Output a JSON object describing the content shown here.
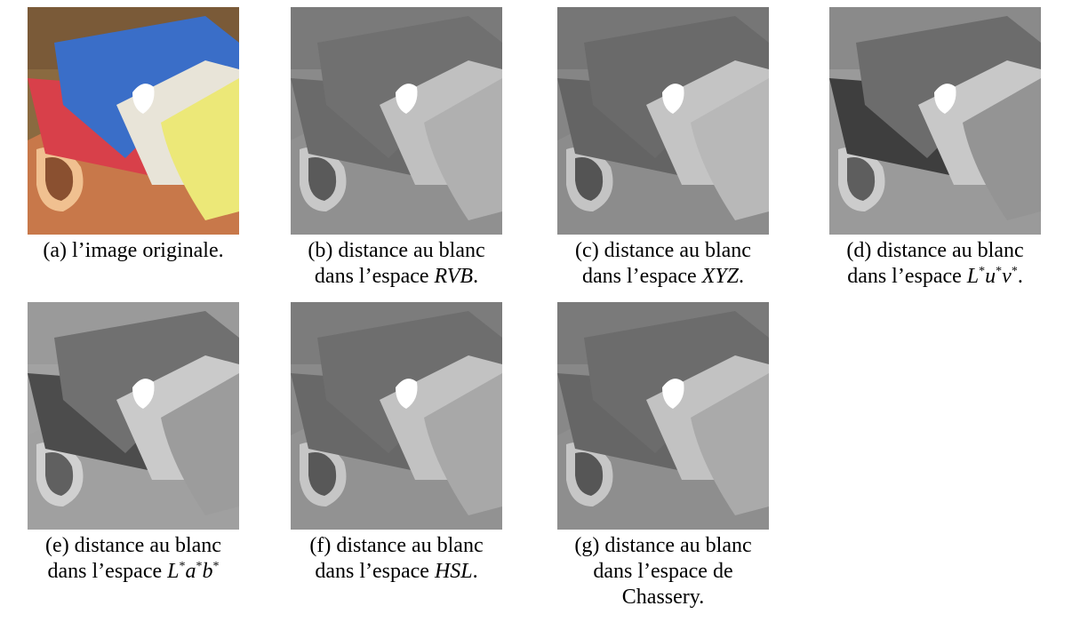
{
  "panels": [
    {
      "id": "a",
      "text": "(a) l’image originale.",
      "line2_prefix": "",
      "line2_space": "",
      "line2_suffix": ""
    },
    {
      "id": "b",
      "text": "(b)  distance au blanc",
      "line2_prefix": "dans l’espace ",
      "line2_space": "RVB",
      "line2_suffix": "."
    },
    {
      "id": "c",
      "text": "(c) distance au blanc",
      "line2_prefix": "dans l’espace ",
      "line2_space": "XYZ",
      "line2_suffix": "."
    },
    {
      "id": "d",
      "text": "(d)  distance au blanc",
      "line2_prefix": "dans l’espace ",
      "line2_space": "",
      "line2_suffix": "."
    },
    {
      "id": "e",
      "text": "(e)  distance au blanc",
      "line2_prefix": "dans l’espace ",
      "line2_space": "",
      "line2_suffix": ""
    },
    {
      "id": "f",
      "text": "(f)  distance au blanc",
      "line2_prefix": "dans l’espace ",
      "line2_space": "HSL",
      "line2_suffix": "."
    },
    {
      "id": "g",
      "text": "(g)  distance au blanc",
      "line2_prefix": "dans l’espace de",
      "line2_space": "",
      "line2_suffix": "",
      "line3": "Chassery."
    }
  ],
  "math": {
    "luv": [
      "L",
      "*",
      "u",
      "*",
      "v",
      "*"
    ],
    "lab": [
      "L",
      "*",
      "a",
      "*",
      "b",
      "*"
    ]
  },
  "colors": {
    "tray": "#c8784a",
    "red_cloth": "#d8404a",
    "blue_cloth": "#3a6ec8",
    "white_cloth": "#e8e4d8",
    "yellow_cloth": "#ece878",
    "grey_dark": "#5a5a5a",
    "grey_mid": "#8a8a8a",
    "grey_light": "#c8c8c8"
  }
}
